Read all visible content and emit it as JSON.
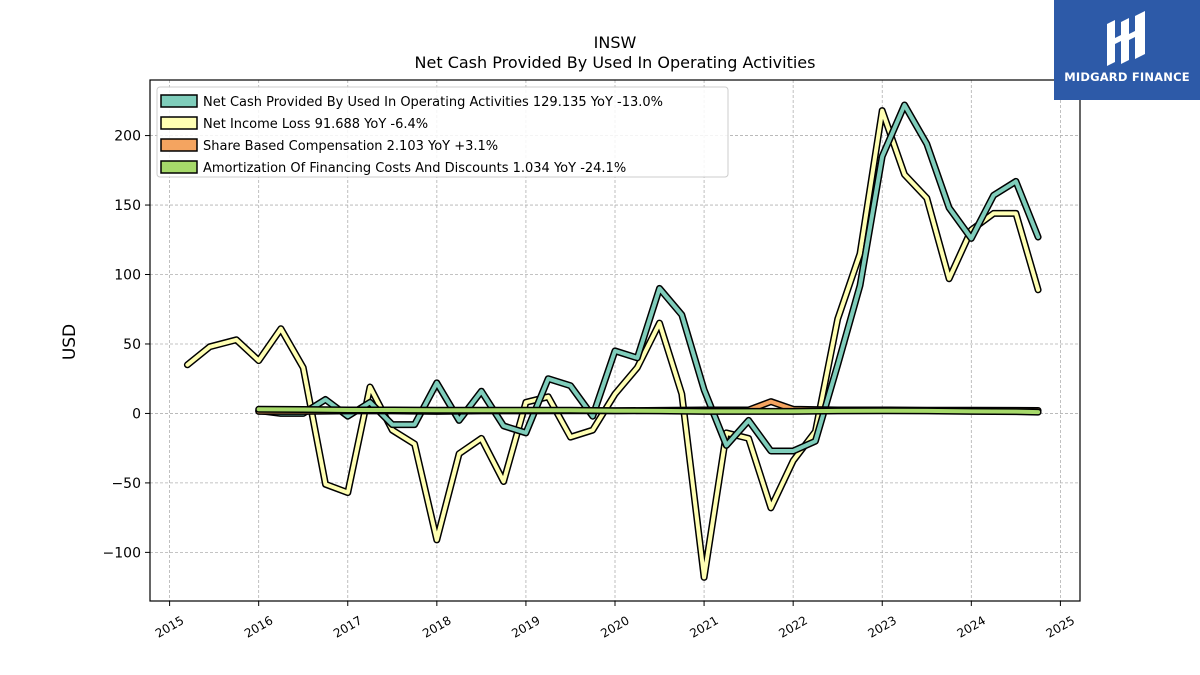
{
  "colors": {
    "op_cash": "#7fcdbb",
    "net_income": "#ffffb3",
    "sbc": "#f4a460",
    "amort": "#a6d96a"
  },
  "logo": {
    "text": "MIDGARD FINANCE",
    "icon": "midgard-logo-icon"
  },
  "chart_data": {
    "type": "line",
    "title": "INSW",
    "subtitle": "Net Cash Provided By Used In Operating Activities",
    "ylabel": "USD",
    "xlabel": "",
    "ylim": [
      -135,
      240
    ],
    "xlim": [
      2014.78,
      2025.22
    ],
    "yticks": [
      -100,
      -50,
      0,
      50,
      100,
      150,
      200
    ],
    "xticks": [
      "2015",
      "2016",
      "2017",
      "2018",
      "2019",
      "2020",
      "2021",
      "2022",
      "2023",
      "2024",
      "2025"
    ],
    "grid": true,
    "legend_position": "top-left",
    "series": [
      {
        "name": "Net Cash Provided By Used In Operating Activities  129.135 YoY -13.0%",
        "color_key": "op_cash",
        "points": [
          [
            2016.0,
            2
          ],
          [
            2016.25,
            0
          ],
          [
            2016.5,
            0
          ],
          [
            2016.75,
            10
          ],
          [
            2017.0,
            -2
          ],
          [
            2017.25,
            8
          ],
          [
            2017.5,
            -8
          ],
          [
            2017.75,
            -8
          ],
          [
            2018.0,
            22
          ],
          [
            2018.25,
            -5
          ],
          [
            2018.5,
            16
          ],
          [
            2018.75,
            -9
          ],
          [
            2019.0,
            -14
          ],
          [
            2019.25,
            25
          ],
          [
            2019.5,
            20
          ],
          [
            2019.75,
            -2
          ],
          [
            2020.0,
            45
          ],
          [
            2020.25,
            40
          ],
          [
            2020.5,
            90
          ],
          [
            2020.75,
            71
          ],
          [
            2021.0,
            17
          ],
          [
            2021.25,
            -23
          ],
          [
            2021.5,
            -5
          ],
          [
            2021.75,
            -27
          ],
          [
            2022.0,
            -27
          ],
          [
            2022.25,
            -20
          ],
          [
            2022.5,
            35
          ],
          [
            2022.75,
            92
          ],
          [
            2023.0,
            185
          ],
          [
            2023.25,
            222
          ],
          [
            2023.5,
            194
          ],
          [
            2023.75,
            148
          ],
          [
            2024.0,
            126
          ],
          [
            2024.25,
            157
          ],
          [
            2024.5,
            167
          ],
          [
            2024.75,
            127
          ]
        ]
      },
      {
        "name": "Net Income Loss  91.688 YoY -6.4%",
        "color_key": "net_income",
        "points": [
          [
            2015.2,
            35
          ],
          [
            2015.45,
            48
          ],
          [
            2015.75,
            53
          ],
          [
            2016.0,
            38
          ],
          [
            2016.25,
            61
          ],
          [
            2016.5,
            33
          ],
          [
            2016.75,
            -51
          ],
          [
            2017.0,
            -57
          ],
          [
            2017.25,
            19
          ],
          [
            2017.5,
            -12
          ],
          [
            2017.75,
            -22
          ],
          [
            2018.0,
            -91
          ],
          [
            2018.25,
            -29
          ],
          [
            2018.5,
            -18
          ],
          [
            2018.75,
            -49
          ],
          [
            2019.0,
            8
          ],
          [
            2019.25,
            12
          ],
          [
            2019.5,
            -17
          ],
          [
            2019.75,
            -12
          ],
          [
            2020.0,
            14
          ],
          [
            2020.25,
            33
          ],
          [
            2020.5,
            65
          ],
          [
            2020.75,
            14
          ],
          [
            2021.0,
            -118
          ],
          [
            2021.25,
            -14
          ],
          [
            2021.5,
            -18
          ],
          [
            2021.75,
            -68
          ],
          [
            2022.0,
            -34
          ],
          [
            2022.25,
            -13
          ],
          [
            2022.5,
            68
          ],
          [
            2022.75,
            115
          ],
          [
            2023.0,
            218
          ],
          [
            2023.25,
            172
          ],
          [
            2023.5,
            155
          ],
          [
            2023.75,
            97
          ],
          [
            2024.0,
            132
          ],
          [
            2024.25,
            144
          ],
          [
            2024.5,
            144
          ],
          [
            2024.75,
            89
          ]
        ]
      },
      {
        "name": "Share Based Compensation  2.103 YoY +3.1%",
        "color_key": "sbc",
        "points": [
          [
            2016.0,
            1.5
          ],
          [
            2016.5,
            1.5
          ],
          [
            2017.0,
            1.8
          ],
          [
            2017.5,
            1.8
          ],
          [
            2018.0,
            1.5
          ],
          [
            2018.5,
            1.8
          ],
          [
            2019.0,
            1.8
          ],
          [
            2019.5,
            2.0
          ],
          [
            2020.0,
            2.0
          ],
          [
            2020.5,
            2.2
          ],
          [
            2021.0,
            2.5
          ],
          [
            2021.5,
            2.5
          ],
          [
            2021.75,
            8.5
          ],
          [
            2022.0,
            3.0
          ],
          [
            2022.5,
            2.5
          ],
          [
            2023.0,
            2.5
          ],
          [
            2023.5,
            2.3
          ],
          [
            2024.0,
            2.3
          ],
          [
            2024.5,
            2.2
          ],
          [
            2024.75,
            2.1
          ]
        ]
      },
      {
        "name": "Amortization Of Financing Costs And Discounts  1.034 YoY -24.1%",
        "color_key": "amort",
        "points": [
          [
            2016.0,
            3
          ],
          [
            2016.5,
            2.8
          ],
          [
            2017.0,
            2.5
          ],
          [
            2017.5,
            2.5
          ],
          [
            2018.0,
            2.3
          ],
          [
            2018.5,
            2.3
          ],
          [
            2019.0,
            2.3
          ],
          [
            2019.5,
            2.3
          ],
          [
            2020.0,
            2.0
          ],
          [
            2020.5,
            1.8
          ],
          [
            2021.0,
            1.5
          ],
          [
            2021.5,
            1.5
          ],
          [
            2022.0,
            1.5
          ],
          [
            2022.5,
            1.8
          ],
          [
            2023.0,
            2.0
          ],
          [
            2023.5,
            1.8
          ],
          [
            2024.0,
            1.5
          ],
          [
            2024.5,
            1.3
          ],
          [
            2024.75,
            1.0
          ]
        ]
      }
    ]
  }
}
